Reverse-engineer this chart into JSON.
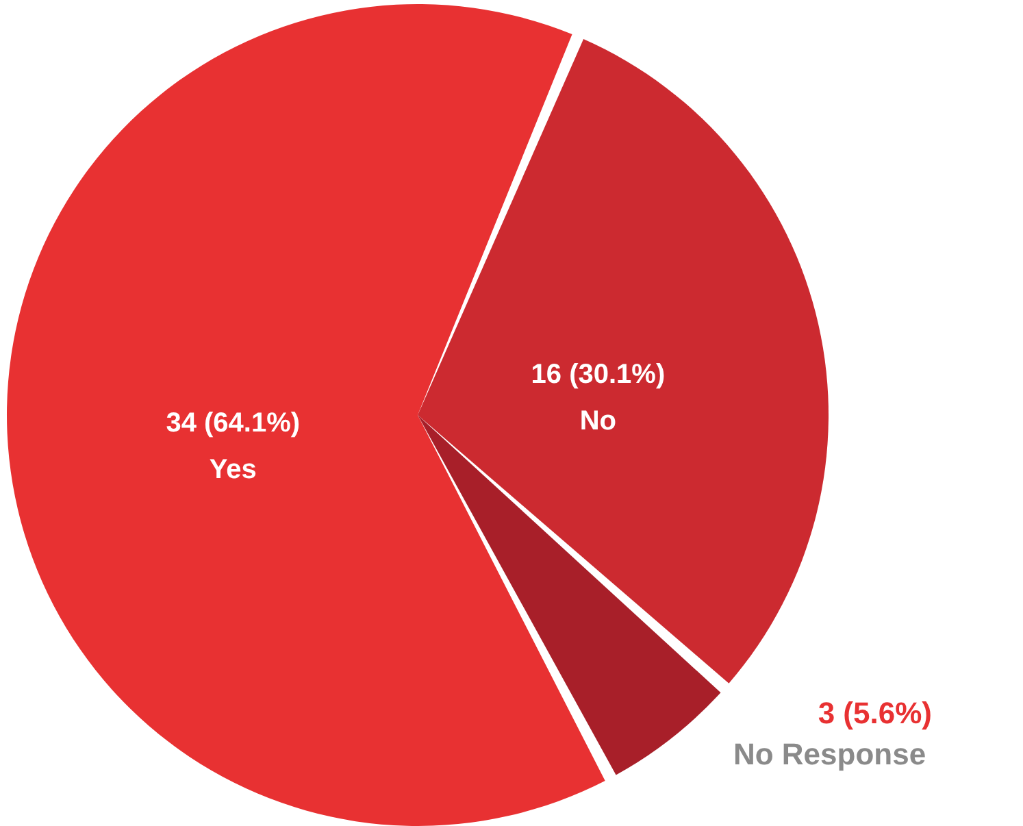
{
  "chart_data": {
    "type": "pie",
    "categories": [
      "Yes",
      "No",
      "No Response"
    ],
    "values": [
      34,
      16,
      3
    ],
    "colors": [
      "#e83132",
      "#cc2a30",
      "#a81f29"
    ],
    "value_labels": [
      "34 (64.1%)",
      "16 (30.1%)",
      "3 (5.6%)"
    ]
  }
}
